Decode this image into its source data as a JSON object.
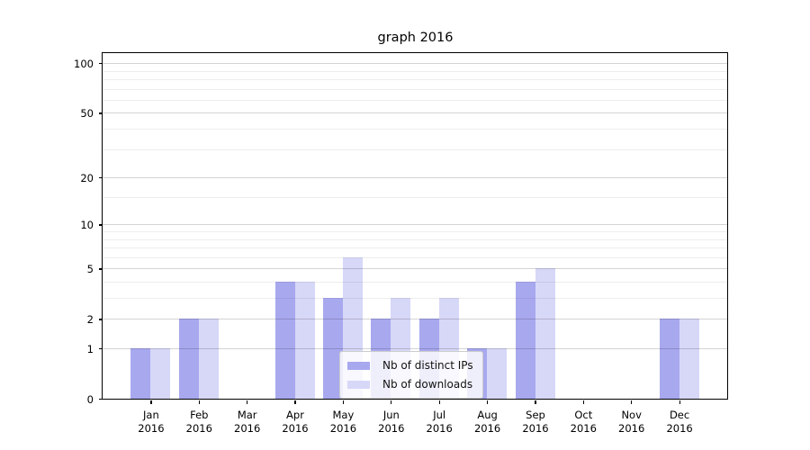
{
  "chart_data": {
    "type": "bar",
    "title": "graph 2016",
    "categories": [
      "Jan 2016",
      "Feb 2016",
      "Mar 2016",
      "Apr 2016",
      "May 2016",
      "Jun 2016",
      "Jul 2016",
      "Aug 2016",
      "Sep 2016",
      "Oct 2016",
      "Nov 2016",
      "Dec 2016"
    ],
    "series": [
      {
        "name": "Nb of distinct IPs",
        "color": "#a8a8ef",
        "values": [
          1,
          2,
          0,
          4,
          3,
          2,
          2,
          1,
          4,
          0,
          0,
          2
        ]
      },
      {
        "name": "Nb of downloads",
        "color": "#d7d7f8",
        "values": [
          1,
          2,
          0,
          4,
          6,
          3,
          3,
          1,
          5,
          0,
          0,
          2
        ]
      }
    ],
    "yscale": "log1p",
    "ylim": [
      0,
      115
    ],
    "y_ticks": [
      0,
      1,
      2,
      5,
      10,
      20,
      50,
      100
    ],
    "y_minor_ticks": [
      3,
      4,
      6,
      7,
      8,
      9,
      15,
      30,
      40,
      60,
      70,
      80,
      90
    ],
    "xlabel": "",
    "ylabel": "",
    "grid": "both",
    "legend_position": "lower-center-inside"
  }
}
